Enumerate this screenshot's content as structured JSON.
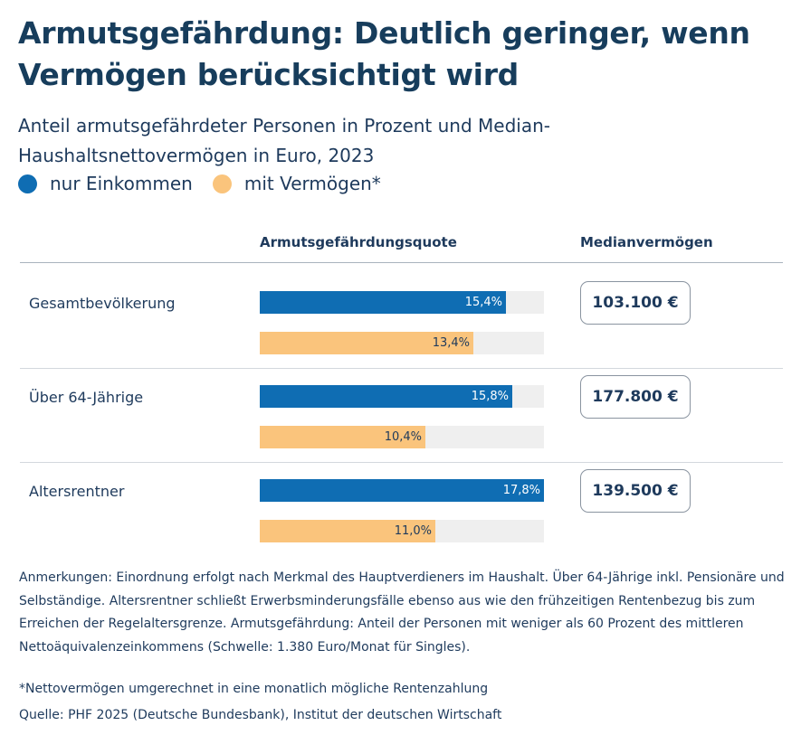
{
  "header": {
    "title": "Armutsgefährdung: Deutlich geringer, wenn Vermögen berücksichtigt wird",
    "subtitle": "Anteil armutsgefährdeter Personen in Prozent und Median-Haushaltsnettovermögen in Euro, 2023"
  },
  "legend": [
    {
      "label": "nur Einkommen",
      "color": "#0f6db3"
    },
    {
      "label": "mit Vermögen*",
      "color": "#fac47c"
    }
  ],
  "columns": {
    "quote": "Armutsgefährdungsquote",
    "median": "Medianvermögen"
  },
  "chart_data": {
    "type": "bar",
    "categories": [
      "Gesamtbevölkerung",
      "Über 64-Jährige",
      "Altersrentner"
    ],
    "series": [
      {
        "name": "nur Einkommen",
        "values": [
          15.4,
          15.8,
          17.8
        ],
        "labels": [
          "15,4%",
          "15,8%",
          "17,8%"
        ],
        "color": "#0f6db3"
      },
      {
        "name": "mit Vermögen*",
        "values": [
          13.4,
          10.4,
          11.0
        ],
        "labels": [
          "13,4%",
          "10,4%",
          "11,0%"
        ],
        "color": "#fac47c"
      }
    ],
    "xlim": [
      0,
      17.8
    ],
    "title": "Armutsgefährdungsquote",
    "median_values": [
      "103.100 €",
      "177.800 €",
      "139.500 €"
    ]
  },
  "notes": "Anmerkungen: Einordnung erfolgt nach Merkmal des Hauptverdieners im Haushalt. Über 64-Jährige inkl. Pensionäre und Selbständige. Altersrentner schließt Erwerbsminderungsfälle ebenso aus wie den frühzeitigen Rentenbezug bis zum Erreichen der Regelaltersgrenze. Armutsgefährdung: Anteil der Personen mit weniger als 60 Prozent des mittleren Nettoäquivalenzeinkommens (Schwelle: 1.380 Euro/Monat für Singles).",
  "footnote": "*Nettovermögen umgerechnet in eine monatlich mögliche Rentenzahlung",
  "source": "Quelle: PHF 2025 (Deutsche Bundesbank), Institut der deutschen Wirtschaft"
}
